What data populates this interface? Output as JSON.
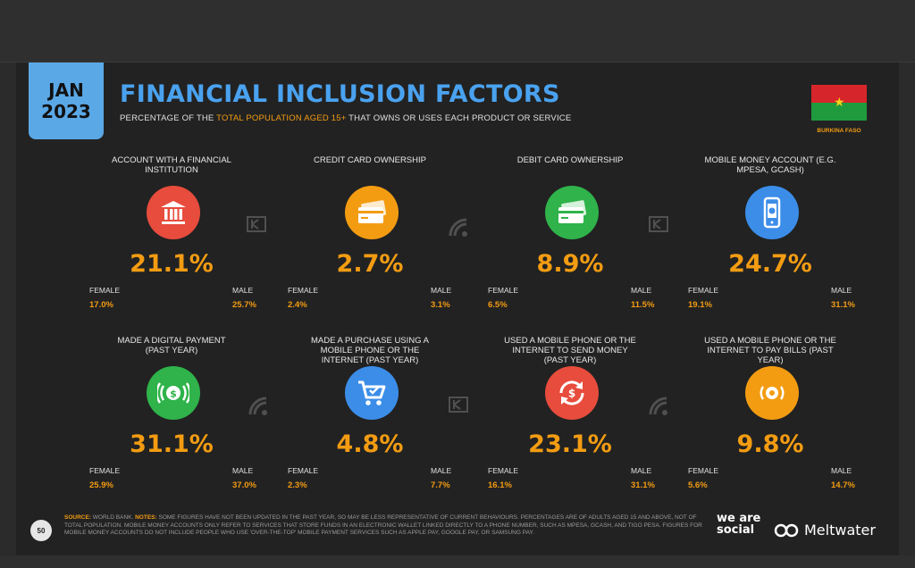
{
  "header": {
    "month": "JAN",
    "year": "2023",
    "title": "FINANCIAL INCLUSION FACTORS",
    "subtitle_pre": "PERCENTAGE OF THE ",
    "subtitle_highlight": "TOTAL POPULATION AGED 15+",
    "subtitle_post": " THAT OWNS OR USES EACH PRODUCT OR SERVICE",
    "country": "BURKINA FASO"
  },
  "cards": [
    {
      "label": "ACCOUNT WITH A FINANCIAL INSTITUTION",
      "icon": "bank-icon",
      "color": "#e74c3c",
      "value": "21.1%",
      "female_label": "FEMALE",
      "female": "17.0%",
      "male_label": "MALE",
      "male": "25.7%"
    },
    {
      "label": "CREDIT CARD OWNERSHIP",
      "icon": "credit-card-icon",
      "color": "#f39c12",
      "value": "2.7%",
      "female_label": "FEMALE",
      "female": "2.4%",
      "male_label": "MALE",
      "male": "3.1%"
    },
    {
      "label": "DEBIT CARD OWNERSHIP",
      "icon": "debit-card-icon",
      "color": "#2fb34a",
      "value": "8.9%",
      "female_label": "FEMALE",
      "female": "6.5%",
      "male_label": "MALE",
      "male": "11.5%"
    },
    {
      "label": "MOBILE MONEY ACCOUNT (E.G. MPESA, GCASH)",
      "icon": "mobile-money-icon",
      "color": "#3b8de8",
      "value": "24.7%",
      "female_label": "FEMALE",
      "female": "19.1%",
      "male_label": "MALE",
      "male": "31.1%"
    },
    {
      "label": "MADE A DIGITAL PAYMENT (PAST YEAR)",
      "icon": "digital-payment-icon",
      "color": "#2fb34a",
      "value": "31.1%",
      "female_label": "FEMALE",
      "female": "25.9%",
      "male_label": "MALE",
      "male": "37.0%"
    },
    {
      "label": "MADE A PURCHASE USING A MOBILE PHONE OR THE INTERNET (PAST YEAR)",
      "icon": "shopping-cart-icon",
      "color": "#3b8de8",
      "value": "4.8%",
      "female_label": "FEMALE",
      "female": "2.3%",
      "male_label": "MALE",
      "male": "7.7%"
    },
    {
      "label": "USED A MOBILE PHONE OR THE INTERNET TO SEND MONEY (PAST YEAR)",
      "icon": "send-money-icon",
      "color": "#e74c3c",
      "value": "23.1%",
      "female_label": "FEMALE",
      "female": "16.1%",
      "male_label": "MALE",
      "male": "31.1%"
    },
    {
      "label": "USED A MOBILE PHONE OR THE INTERNET TO PAY BILLS (PAST YEAR)",
      "icon": "pay-bills-icon",
      "color": "#f39c12",
      "value": "9.8%",
      "female_label": "FEMALE",
      "female": "5.6%",
      "male_label": "MALE",
      "male": "14.7%"
    }
  ],
  "footer": {
    "source_label": "SOURCE:",
    "source_text": " WORLD BANK. ",
    "notes_label": "NOTES:",
    "notes_text": " SOME FIGURES HAVE NOT BEEN UPDATED IN THE PAST YEAR, SO MAY BE LESS REPRESENTATIVE OF CURRENT BEHAVIOURS. PERCENTAGES ARE OF ADULTS AGED 15 AND ABOVE, NOT OF TOTAL POPULATION. MOBILE MONEY ACCOUNTS ONLY REFER TO SERVICES THAT STORE FUNDS IN AN ELECTRONIC WALLET LINKED DIRECTLY TO A PHONE NUMBER, SUCH AS MPESA, GCASH, AND TIGO PESA. FIGURES FOR MOBILE MONEY ACCOUNTS DO NOT INCLUDE PEOPLE WHO USE 'OVER-THE-TOP' MOBILE PAYMENT SERVICES SUCH AS APPLE PAY, GOOGLE PAY, OR SAMSUNG PAY.",
    "page_number": "50",
    "brand1": "we are social",
    "brand2": "Meltwater"
  }
}
